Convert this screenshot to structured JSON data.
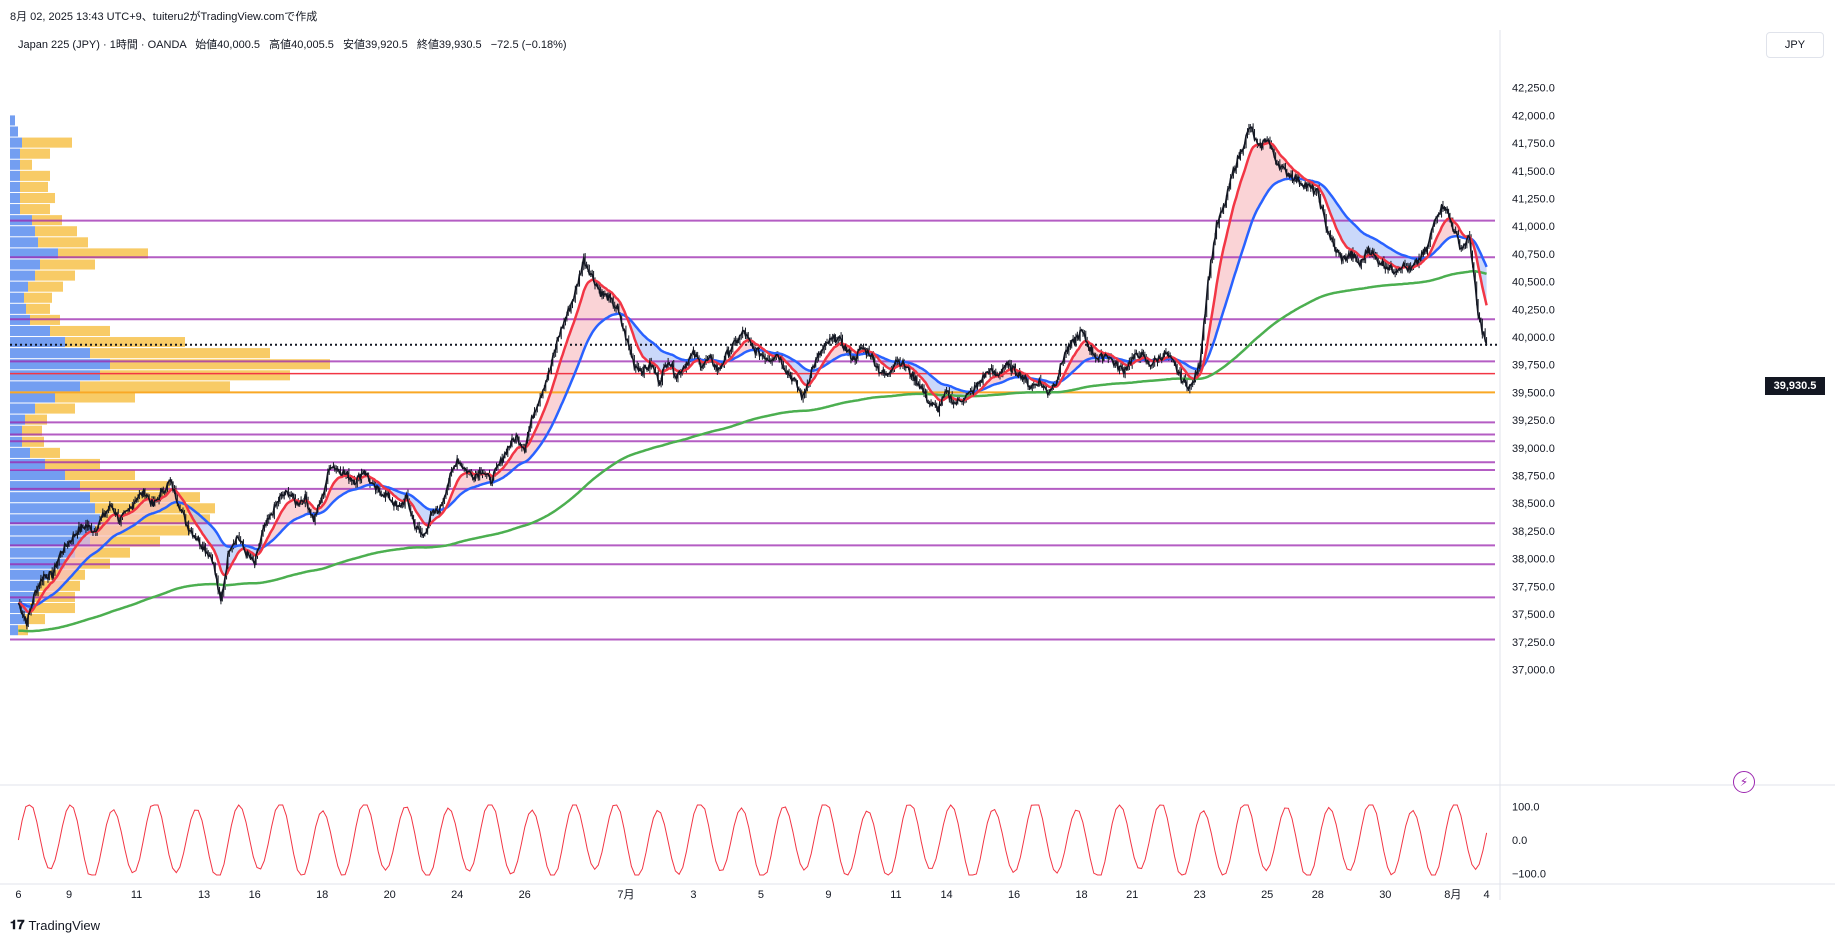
{
  "header": {
    "snapshot_info": "8月 02, 2025 13:43 UTC+9、tuiteru2がTradingView.comで作成"
  },
  "legend": {
    "symbol": "Japan 225 (JPY) · 1時間 · OANDA",
    "open": "始値40,000.5",
    "high": "高値40,005.5",
    "low": "安値39,920.5",
    "close": "終値39,930.5",
    "change": "−72.5 (−0.18%)"
  },
  "currency": "JPY",
  "last_price_label": "39,930.5",
  "footer": {
    "brand": "TradingView"
  },
  "colors": {
    "candle": "#131722",
    "ema_fast": "#f23645",
    "ema_mid": "#2962ff",
    "sma_long": "#4caf50",
    "sr_line": "#9c27b0",
    "red_level": "#f23645",
    "gold_level": "#f9a825",
    "vp_up": "#5b8def",
    "vp_down": "#f7c24b",
    "oscillator": "#f23645",
    "fill_bull": "#f8c0c4",
    "fill_bear": "#b4c8f8"
  },
  "chart_data": {
    "type": "line",
    "description_series": "Japan 225 hourly price with moving averages, horizontal levels, volume profile and oscillator",
    "price_axis": {
      "ticks": [
        "42,250.0",
        "42,000.0",
        "41,750.0",
        "41,500.0",
        "41,250.0",
        "41,000.0",
        "40,750.0",
        "40,500.0",
        "40,250.0",
        "40,000.0",
        "39,750.0",
        "39,500.0",
        "39,250.0",
        "39,000.0",
        "38,750.0",
        "38,500.0",
        "38,250.0",
        "38,000.0",
        "37,750.0",
        "37,500.0",
        "37,250.0",
        "37,000.0"
      ],
      "ylim": [
        36950,
        42500
      ]
    },
    "time_axis": {
      "ticks": [
        {
          "label": "6",
          "t": 0
        },
        {
          "label": "9",
          "t": 6
        },
        {
          "label": "11",
          "t": 14
        },
        {
          "label": "13",
          "t": 22
        },
        {
          "label": "16",
          "t": 28
        },
        {
          "label": "18",
          "t": 36
        },
        {
          "label": "20",
          "t": 44
        },
        {
          "label": "24",
          "t": 52
        },
        {
          "label": "26",
          "t": 60
        },
        {
          "label": "7月",
          "t": 72
        },
        {
          "label": "3",
          "t": 80
        },
        {
          "label": "5",
          "t": 88
        },
        {
          "label": "9",
          "t": 96
        },
        {
          "label": "11",
          "t": 104
        },
        {
          "label": "14",
          "t": 110
        },
        {
          "label": "16",
          "t": 118
        },
        {
          "label": "18",
          "t": 126
        },
        {
          "label": "21",
          "t": 132
        },
        {
          "label": "23",
          "t": 140
        },
        {
          "label": "25",
          "t": 148
        },
        {
          "label": "28",
          "t": 154
        },
        {
          "label": "30",
          "t": 162
        },
        {
          "label": "8月",
          "t": 170
        },
        {
          "label": "4",
          "t": 174
        }
      ],
      "tlim": [
        -1,
        175
      ]
    },
    "price_anchors": [
      [
        0,
        37600
      ],
      [
        1,
        37420
      ],
      [
        2,
        37700
      ],
      [
        3,
        37850
      ],
      [
        4,
        37850
      ],
      [
        5,
        38050
      ],
      [
        6,
        38150
      ],
      [
        7,
        38250
      ],
      [
        8,
        38300
      ],
      [
        9,
        38250
      ],
      [
        10,
        38380
      ],
      [
        11,
        38480
      ],
      [
        12,
        38350
      ],
      [
        13,
        38420
      ],
      [
        14,
        38550
      ],
      [
        15,
        38600
      ],
      [
        16,
        38480
      ],
      [
        17,
        38600
      ],
      [
        18,
        38700
      ],
      [
        19,
        38500
      ],
      [
        20,
        38300
      ],
      [
        21,
        38200
      ],
      [
        22,
        38100
      ],
      [
        23,
        38000
      ],
      [
        24,
        37600
      ],
      [
        25,
        38100
      ],
      [
        26,
        38200
      ],
      [
        27,
        38050
      ],
      [
        28,
        37950
      ],
      [
        29,
        38250
      ],
      [
        30,
        38400
      ],
      [
        31,
        38550
      ],
      [
        32,
        38600
      ],
      [
        33,
        38500
      ],
      [
        34,
        38550
      ],
      [
        35,
        38350
      ],
      [
        36,
        38550
      ],
      [
        37,
        38850
      ],
      [
        38,
        38800
      ],
      [
        39,
        38750
      ],
      [
        40,
        38700
      ],
      [
        41,
        38800
      ],
      [
        42,
        38650
      ],
      [
        43,
        38600
      ],
      [
        44,
        38550
      ],
      [
        45,
        38450
      ],
      [
        46,
        38550
      ],
      [
        47,
        38300
      ],
      [
        48,
        38200
      ],
      [
        49,
        38400
      ],
      [
        50,
        38450
      ],
      [
        51,
        38700
      ],
      [
        52,
        38900
      ],
      [
        53,
        38800
      ],
      [
        54,
        38750
      ],
      [
        55,
        38800
      ],
      [
        56,
        38700
      ],
      [
        57,
        38850
      ],
      [
        58,
        39000
      ],
      [
        59,
        39100
      ],
      [
        60,
        39000
      ],
      [
        61,
        39300
      ],
      [
        62,
        39500
      ],
      [
        63,
        39700
      ],
      [
        64,
        40000
      ],
      [
        65,
        40200
      ],
      [
        66,
        40400
      ],
      [
        67,
        40700
      ],
      [
        68,
        40550
      ],
      [
        69,
        40400
      ],
      [
        70,
        40350
      ],
      [
        71,
        40250
      ],
      [
        72,
        40000
      ],
      [
        73,
        39750
      ],
      [
        74,
        39700
      ],
      [
        75,
        39750
      ],
      [
        76,
        39600
      ],
      [
        77,
        39800
      ],
      [
        78,
        39650
      ],
      [
        79,
        39750
      ],
      [
        80,
        39850
      ],
      [
        81,
        39750
      ],
      [
        82,
        39800
      ],
      [
        83,
        39700
      ],
      [
        84,
        39850
      ],
      [
        85,
        39950
      ],
      [
        86,
        40050
      ],
      [
        87,
        39900
      ],
      [
        88,
        39850
      ],
      [
        89,
        39800
      ],
      [
        90,
        39850
      ],
      [
        91,
        39700
      ],
      [
        92,
        39600
      ],
      [
        93,
        39450
      ],
      [
        94,
        39700
      ],
      [
        95,
        39850
      ],
      [
        96,
        39950
      ],
      [
        97,
        40000
      ],
      [
        98,
        39900
      ],
      [
        99,
        39800
      ],
      [
        100,
        39900
      ],
      [
        101,
        39850
      ],
      [
        102,
        39700
      ],
      [
        103,
        39650
      ],
      [
        104,
        39800
      ],
      [
        105,
        39750
      ],
      [
        106,
        39650
      ],
      [
        107,
        39550
      ],
      [
        108,
        39400
      ],
      [
        109,
        39350
      ],
      [
        110,
        39500
      ],
      [
        111,
        39400
      ],
      [
        112,
        39450
      ],
      [
        113,
        39500
      ],
      [
        114,
        39600
      ],
      [
        115,
        39700
      ],
      [
        116,
        39650
      ],
      [
        117,
        39750
      ],
      [
        118,
        39700
      ],
      [
        119,
        39650
      ],
      [
        120,
        39550
      ],
      [
        121,
        39600
      ],
      [
        122,
        39500
      ],
      [
        123,
        39600
      ],
      [
        124,
        39850
      ],
      [
        125,
        39950
      ],
      [
        126,
        40050
      ],
      [
        127,
        39900
      ],
      [
        128,
        39800
      ],
      [
        129,
        39850
      ],
      [
        130,
        39750
      ],
      [
        131,
        39700
      ],
      [
        132,
        39800
      ],
      [
        133,
        39850
      ],
      [
        134,
        39750
      ],
      [
        135,
        39800
      ],
      [
        136,
        39850
      ],
      [
        137,
        39750
      ],
      [
        138,
        39600
      ],
      [
        139,
        39550
      ],
      [
        140,
        39750
      ],
      [
        141,
        40500
      ],
      [
        142,
        41000
      ],
      [
        143,
        41200
      ],
      [
        144,
        41500
      ],
      [
        145,
        41700
      ],
      [
        146,
        41900
      ],
      [
        147,
        41700
      ],
      [
        148,
        41800
      ],
      [
        149,
        41600
      ],
      [
        150,
        41500
      ],
      [
        151,
        41450
      ],
      [
        152,
        41400
      ],
      [
        153,
        41350
      ],
      [
        154,
        41300
      ],
      [
        155,
        41000
      ],
      [
        156,
        40800
      ],
      [
        157,
        40700
      ],
      [
        158,
        40750
      ],
      [
        159,
        40650
      ],
      [
        160,
        40800
      ],
      [
        161,
        40700
      ],
      [
        162,
        40650
      ],
      [
        163,
        40600
      ],
      [
        164,
        40650
      ],
      [
        165,
        40600
      ],
      [
        166,
        40700
      ],
      [
        167,
        40800
      ],
      [
        168,
        41100
      ],
      [
        169,
        41200
      ],
      [
        170,
        41000
      ],
      [
        171,
        40800
      ],
      [
        172,
        40900
      ],
      [
        173,
        40200
      ],
      [
        174,
        39930
      ]
    ],
    "levels": {
      "purple": [
        41050,
        40720,
        40160,
        39780,
        39230,
        39120,
        39060,
        38870,
        38800,
        38630,
        38320,
        38120,
        37950,
        37650,
        37270
      ],
      "red": [
        39670
      ],
      "gold": [
        39500
      ],
      "last_close": 39930.5
    },
    "volume_profile": [
      {
        "price": 41950,
        "up": 5,
        "down": 0
      },
      {
        "price": 41850,
        "up": 8,
        "down": 0
      },
      {
        "price": 41750,
        "up": 12,
        "down": 50
      },
      {
        "price": 41650,
        "up": 10,
        "down": 30
      },
      {
        "price": 41550,
        "up": 10,
        "down": 12
      },
      {
        "price": 41450,
        "up": 10,
        "down": 30
      },
      {
        "price": 41350,
        "up": 10,
        "down": 28
      },
      {
        "price": 41250,
        "up": 10,
        "down": 35
      },
      {
        "price": 41150,
        "up": 10,
        "down": 30
      },
      {
        "price": 41050,
        "up": 22,
        "down": 30
      },
      {
        "price": 40950,
        "up": 25,
        "down": 42
      },
      {
        "price": 40850,
        "up": 28,
        "down": 50
      },
      {
        "price": 40750,
        "up": 48,
        "down": 90
      },
      {
        "price": 40650,
        "up": 30,
        "down": 55
      },
      {
        "price": 40550,
        "up": 25,
        "down": 40
      },
      {
        "price": 40450,
        "up": 18,
        "down": 35
      },
      {
        "price": 40350,
        "up": 14,
        "down": 28
      },
      {
        "price": 40250,
        "up": 16,
        "down": 24
      },
      {
        "price": 40150,
        "up": 20,
        "down": 30
      },
      {
        "price": 40050,
        "up": 40,
        "down": 60
      },
      {
        "price": 39950,
        "up": 55,
        "down": 120
      },
      {
        "price": 39850,
        "up": 80,
        "down": 180
      },
      {
        "price": 39750,
        "up": 100,
        "down": 220
      },
      {
        "price": 39650,
        "up": 90,
        "down": 190
      },
      {
        "price": 39550,
        "up": 70,
        "down": 150
      },
      {
        "price": 39450,
        "up": 45,
        "down": 80
      },
      {
        "price": 39350,
        "up": 25,
        "down": 40
      },
      {
        "price": 39250,
        "up": 15,
        "down": 22
      },
      {
        "price": 39150,
        "up": 12,
        "down": 20
      },
      {
        "price": 39050,
        "up": 12,
        "down": 22
      },
      {
        "price": 38950,
        "up": 20,
        "down": 30
      },
      {
        "price": 38850,
        "up": 35,
        "down": 55
      },
      {
        "price": 38750,
        "up": 55,
        "down": 70
      },
      {
        "price": 38650,
        "up": 70,
        "down": 90
      },
      {
        "price": 38550,
        "up": 80,
        "down": 110
      },
      {
        "price": 38450,
        "up": 85,
        "down": 120
      },
      {
        "price": 38350,
        "up": 90,
        "down": 110
      },
      {
        "price": 38250,
        "up": 85,
        "down": 95
      },
      {
        "price": 38150,
        "up": 80,
        "down": 70
      },
      {
        "price": 38050,
        "up": 65,
        "down": 55
      },
      {
        "price": 37950,
        "up": 55,
        "down": 45
      },
      {
        "price": 37850,
        "up": 40,
        "down": 35
      },
      {
        "price": 37750,
        "up": 30,
        "down": 40
      },
      {
        "price": 37650,
        "up": 25,
        "down": 40
      },
      {
        "price": 37550,
        "up": 20,
        "down": 45
      },
      {
        "price": 37450,
        "up": 15,
        "down": 20
      },
      {
        "price": 37350,
        "up": 8,
        "down": 10
      }
    ],
    "oscillator": {
      "ticks": [
        "100.0",
        "0.0",
        "−100.0"
      ],
      "ylim": [
        -120,
        120
      ]
    }
  }
}
